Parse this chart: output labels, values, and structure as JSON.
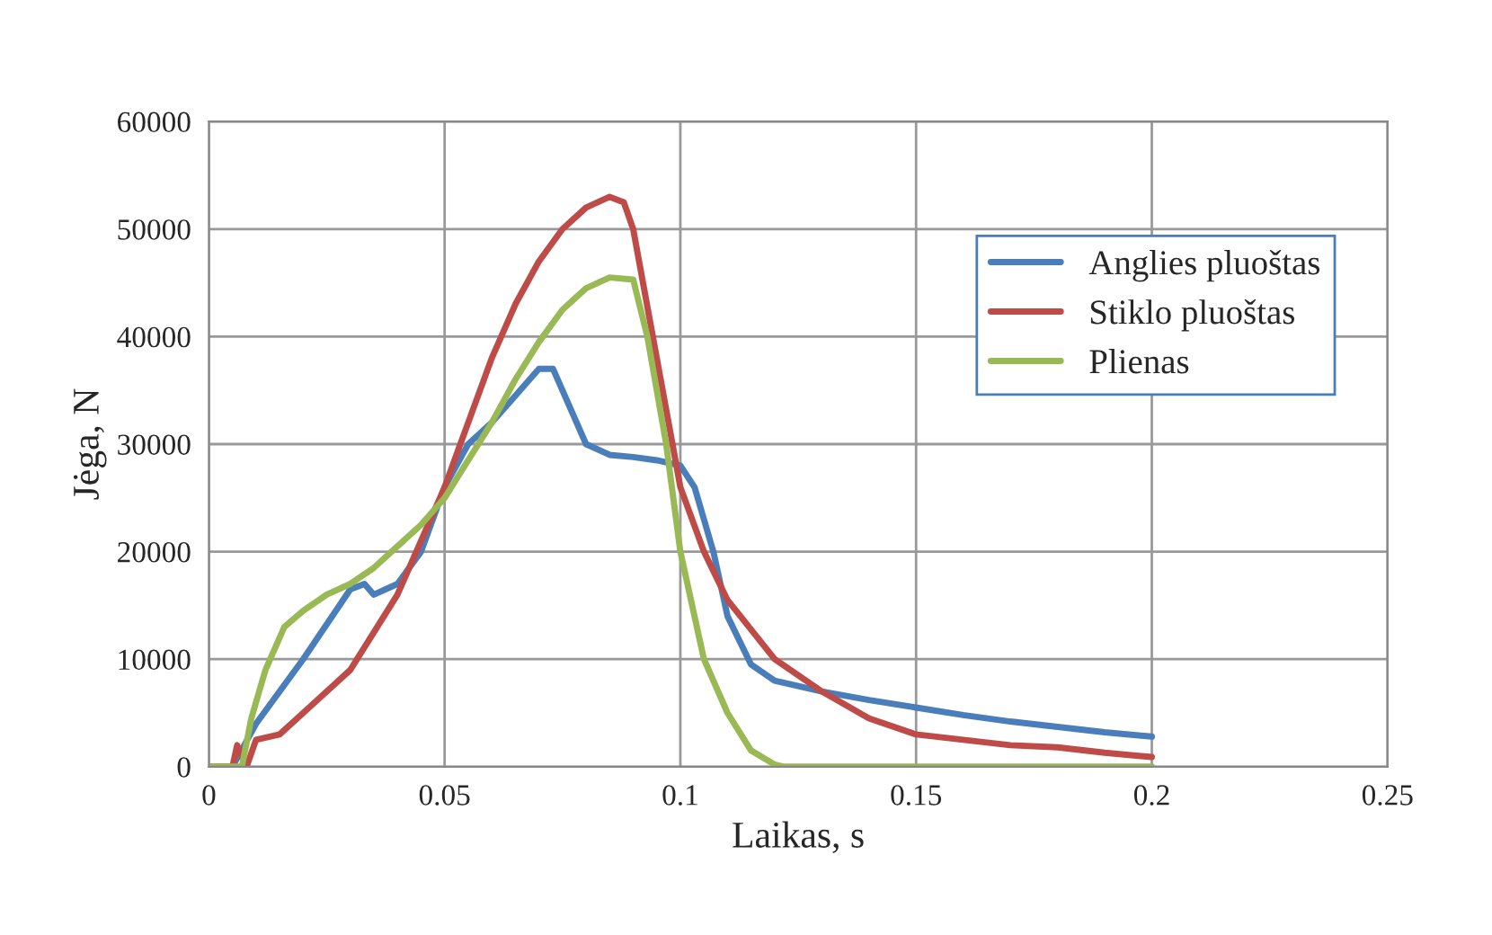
{
  "chart_data": {
    "type": "line",
    "xlabel": "Laikas, s",
    "ylabel": "Jėga, N",
    "xlim": [
      0,
      0.25
    ],
    "xticks": [
      0,
      0.05,
      0.1,
      0.15,
      0.2,
      0.25
    ],
    "ylim": [
      0,
      60000
    ],
    "yticks": [
      0,
      10000,
      20000,
      30000,
      40000,
      50000,
      60000
    ],
    "grid": true,
    "legend": "top right",
    "series": [
      {
        "name": "Anglies pluoštas",
        "color": "#4a7ebb",
        "x": [
          0.005,
          0.01,
          0.02,
          0.03,
          0.033,
          0.035,
          0.04,
          0.045,
          0.05,
          0.055,
          0.06,
          0.065,
          0.07,
          0.073,
          0.077,
          0.08,
          0.085,
          0.09,
          0.095,
          0.1,
          0.103,
          0.107,
          0.11,
          0.115,
          0.12,
          0.13,
          0.14,
          0.15,
          0.16,
          0.17,
          0.18,
          0.19,
          0.2
        ],
        "values": [
          0,
          4000,
          10000,
          16500,
          17000,
          16000,
          17000,
          20000,
          26000,
          30000,
          32000,
          34500,
          37000,
          37000,
          33000,
          30000,
          29000,
          28800,
          28500,
          28000,
          26000,
          20000,
          14000,
          9500,
          8000,
          7000,
          6200,
          5500,
          4800,
          4200,
          3700,
          3200,
          2800
        ]
      },
      {
        "name": "Stiklo pluoštas",
        "color": "#be4b48",
        "x": [
          0,
          0.005,
          0.006,
          0.008,
          0.01,
          0.015,
          0.02,
          0.03,
          0.04,
          0.05,
          0.055,
          0.06,
          0.065,
          0.07,
          0.075,
          0.08,
          0.085,
          0.088,
          0.09,
          0.095,
          0.1,
          0.105,
          0.11,
          0.12,
          0.13,
          0.14,
          0.15,
          0.16,
          0.17,
          0.18,
          0.19,
          0.2
        ],
        "values": [
          0,
          0,
          2000,
          0,
          2500,
          3000,
          5000,
          9000,
          16000,
          26000,
          32000,
          38000,
          43000,
          47000,
          50000,
          52000,
          53000,
          52500,
          50000,
          38000,
          26000,
          20000,
          15500,
          10000,
          7000,
          4500,
          3000,
          2500,
          2000,
          1800,
          1300,
          900
        ]
      },
      {
        "name": "Plienas",
        "color": "#98b954",
        "x": [
          0,
          0.007,
          0.009,
          0.012,
          0.016,
          0.02,
          0.025,
          0.03,
          0.035,
          0.04,
          0.045,
          0.05,
          0.055,
          0.06,
          0.065,
          0.07,
          0.075,
          0.08,
          0.085,
          0.09,
          0.093,
          0.097,
          0.1,
          0.105,
          0.11,
          0.115,
          0.12,
          0.122,
          0.2
        ],
        "values": [
          0,
          0,
          4500,
          9000,
          13000,
          14500,
          16000,
          17000,
          18500,
          20500,
          22500,
          25000,
          28500,
          32000,
          36000,
          39500,
          42500,
          44500,
          45500,
          45300,
          40000,
          30000,
          20000,
          10000,
          5000,
          1500,
          200,
          0,
          0
        ]
      }
    ]
  }
}
